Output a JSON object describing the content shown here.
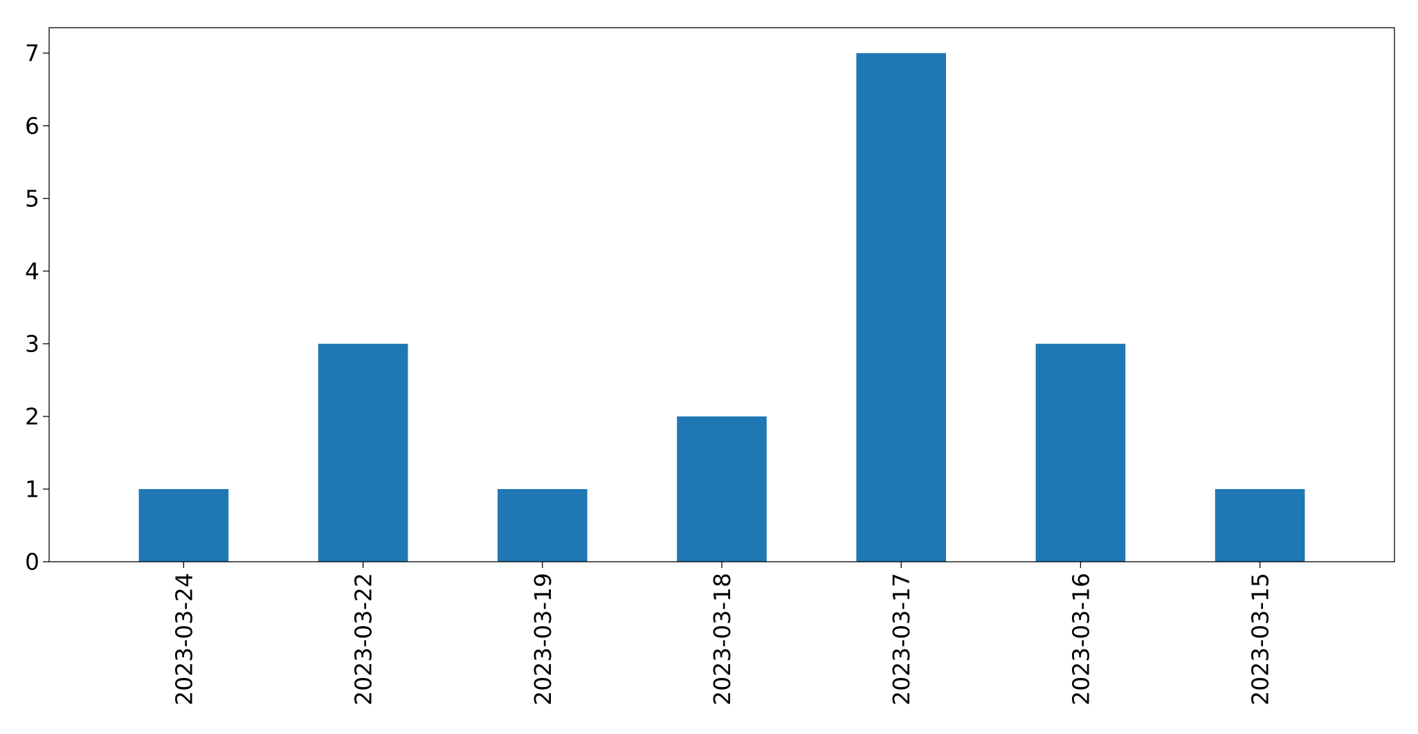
{
  "chart_data": {
    "type": "bar",
    "title": "",
    "xlabel": "",
    "ylabel": "",
    "categories": [
      "2023-03-24",
      "2023-03-22",
      "2023-03-19",
      "2023-03-18",
      "2023-03-17",
      "2023-03-16",
      "2023-03-15"
    ],
    "values": [
      1,
      3,
      1,
      2,
      7,
      3,
      1
    ],
    "ylim": [
      0,
      7.35
    ],
    "yticks": [
      0,
      1,
      2,
      3,
      4,
      5,
      6,
      7
    ],
    "grid": false,
    "legend": "none",
    "colors": {
      "bar": "#1f77b4",
      "axis": "#000000",
      "background": "#ffffff"
    }
  }
}
